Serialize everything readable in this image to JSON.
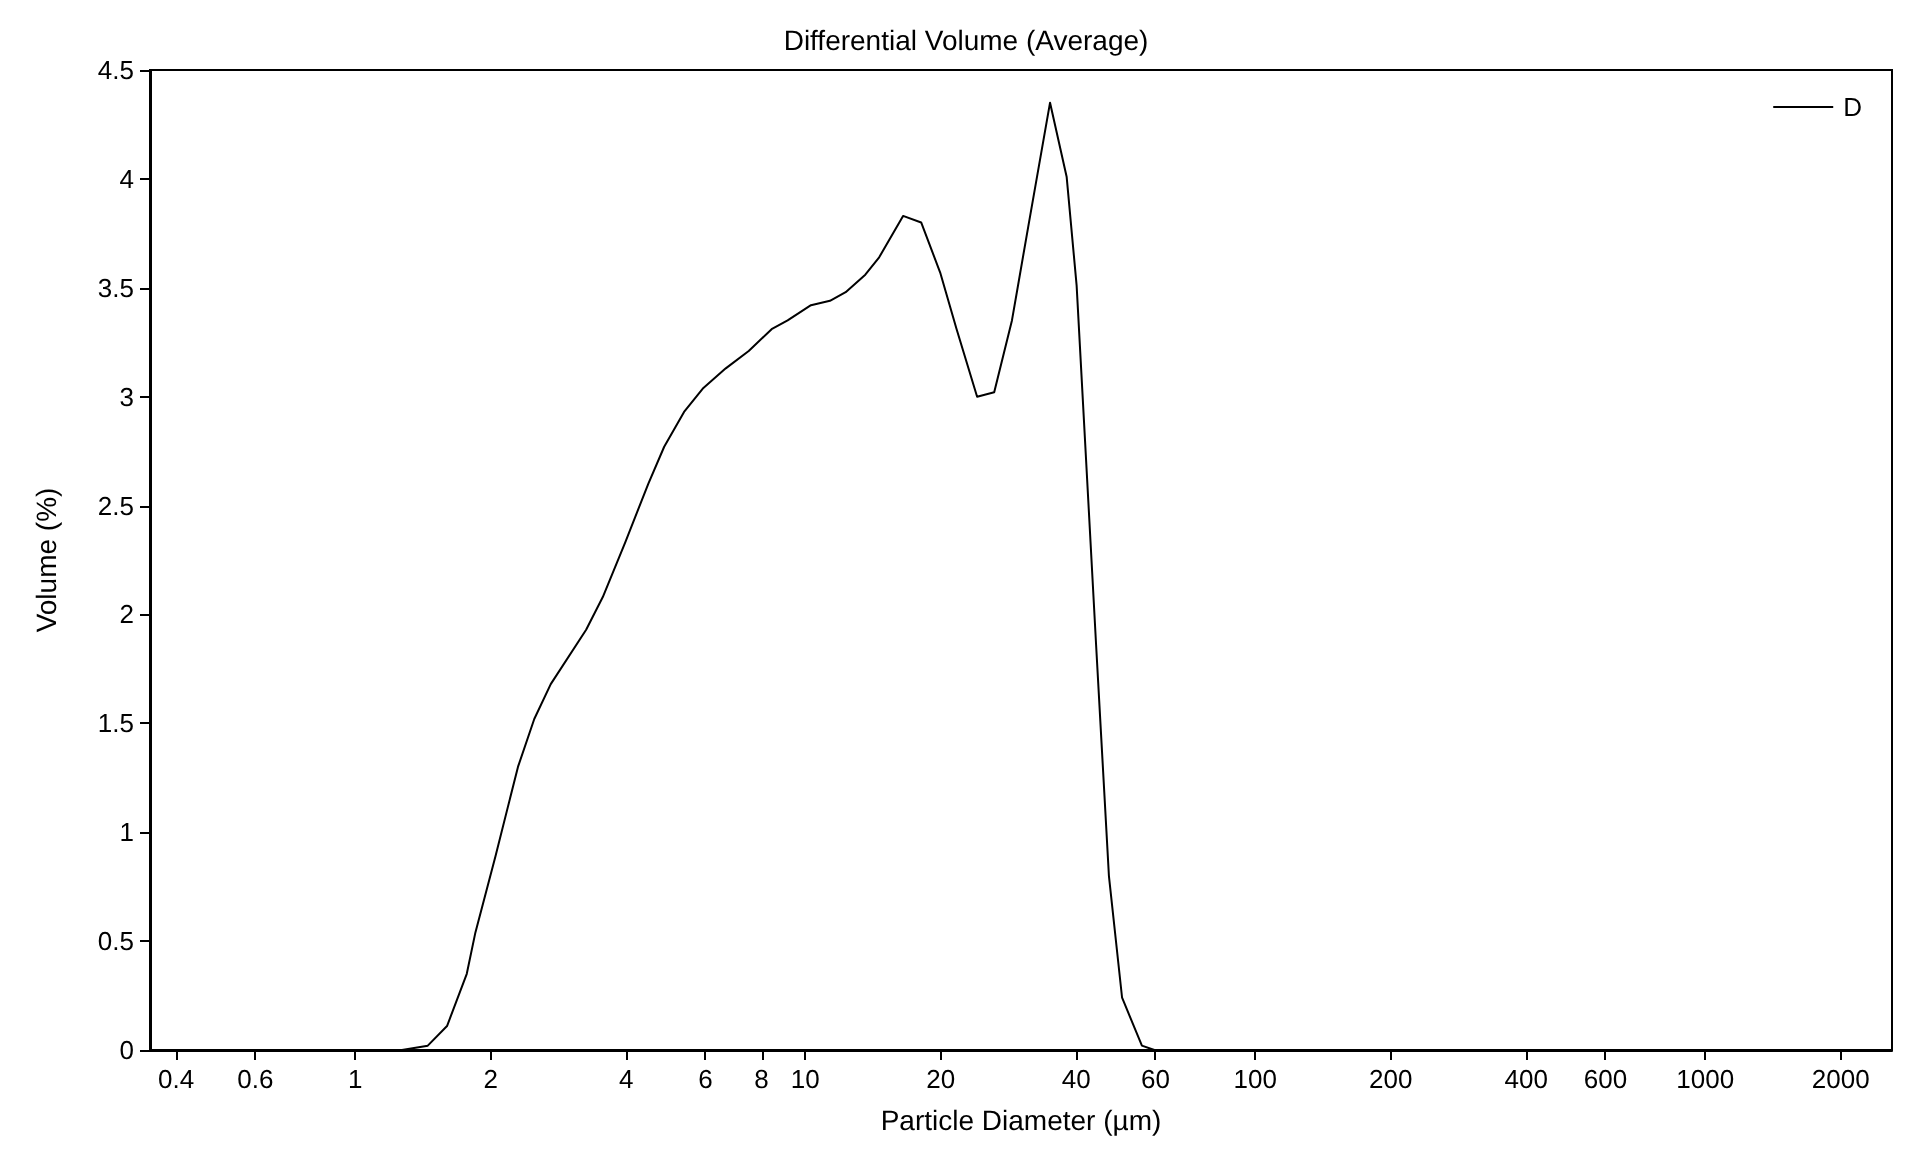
{
  "chart_data": {
    "type": "line",
    "title": "Differential Volume (Average)",
    "xlabel": "Particle Diameter (µm)",
    "ylabel": "Volume (%)",
    "log": "x",
    "grid": false,
    "legend": "top right",
    "marker": "none",
    "line_style": "solid",
    "xlim": [
      0.35,
      2600
    ],
    "xticks": [
      0.4,
      0.6,
      1,
      2,
      4,
      6,
      8,
      10,
      20,
      40,
      60,
      100,
      200,
      400,
      600,
      1000,
      2000
    ],
    "ylim": [
      0,
      4.5
    ],
    "yticks": [
      0,
      0.5,
      1,
      1.5,
      2,
      2.5,
      3,
      3.5,
      4,
      4.5
    ],
    "series": [
      {
        "name": "D",
        "color": "#000000",
        "x": [
          1.27,
          1.45,
          1.6,
          1.77,
          1.85,
          2.05,
          2.3,
          2.5,
          2.72,
          3.26,
          3.55,
          3.98,
          4.48,
          4.86,
          5.38,
          5.94,
          6.66,
          7.49,
          8.42,
          9.14,
          10.3,
          11.35,
          12.3,
          13.6,
          14.6,
          16.5,
          18.1,
          19.95,
          21.7,
          24.1,
          26.3,
          28.8,
          31.3,
          35.0,
          38.1,
          40.1,
          44.3,
          47.3,
          50.6,
          56.0,
          59.7
        ],
        "values": [
          0,
          0.02,
          0.11,
          0.35,
          0.54,
          0.89,
          1.3,
          1.52,
          1.68,
          1.93,
          2.08,
          2.33,
          2.6,
          2.77,
          2.93,
          3.04,
          3.13,
          3.21,
          3.31,
          3.35,
          3.42,
          3.44,
          3.48,
          3.56,
          3.64,
          3.83,
          3.8,
          3.57,
          3.31,
          3.0,
          3.02,
          3.35,
          3.78,
          4.35,
          4.01,
          3.51,
          1.86,
          0.8,
          0.24,
          0.02,
          0
        ]
      }
    ]
  }
}
